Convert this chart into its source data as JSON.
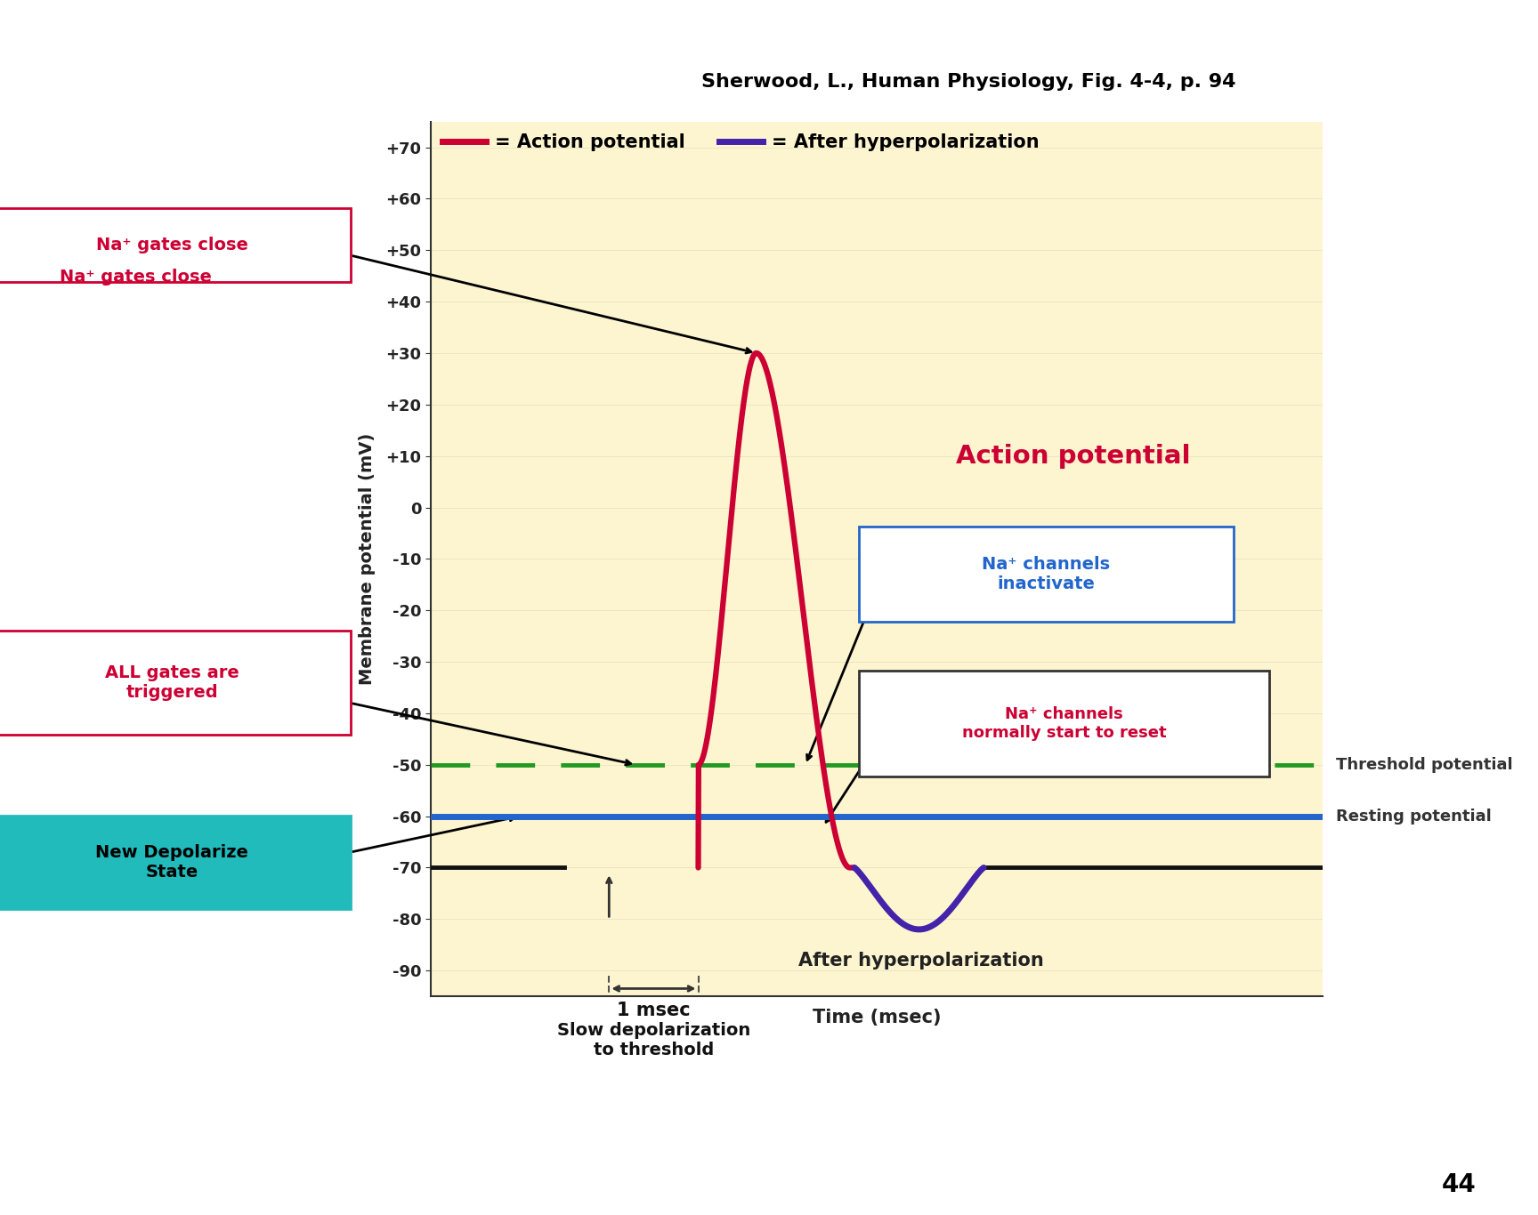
{
  "title": "Sherwood, L., Human Physiology, Fig. 4-4, p. 94",
  "xlabel": "Time (msec)",
  "ylabel": "Membrane potential (mV)",
  "ylim": [
    -95,
    75
  ],
  "xlim": [
    0,
    10
  ],
  "background_color": "#fdf5d0",
  "plot_bg_color": "#fdf5d0",
  "resting_potential": -70,
  "threshold_potential": -50,
  "reference_line": -60,
  "action_potential_color": "#cc0033",
  "hyperpolarization_color": "#4422aa",
  "resting_color": "#111111",
  "threshold_color": "#229922",
  "reference_color": "#2266cc",
  "page_number": "44",
  "yticks": [
    -90,
    -80,
    -70,
    -60,
    -50,
    -40,
    -30,
    -20,
    -10,
    0,
    10,
    20,
    30,
    40,
    50,
    60,
    70
  ]
}
